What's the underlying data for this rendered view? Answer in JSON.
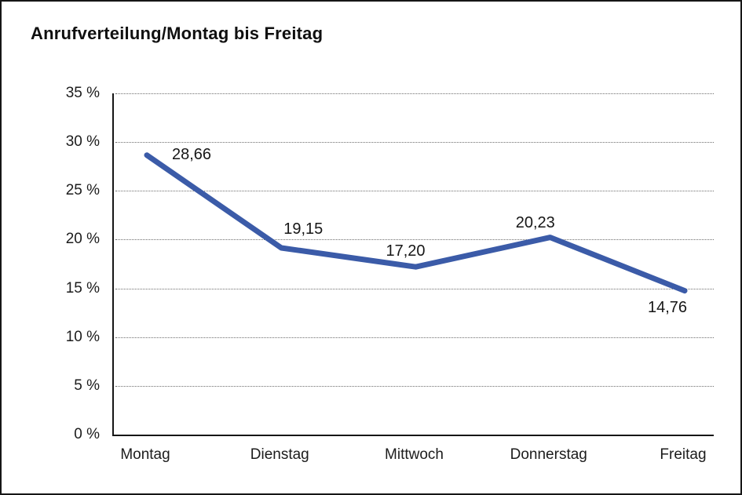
{
  "chart": {
    "title": "Anrufverteilung/Montag bis Freitag"
  },
  "chart_data": {
    "type": "line",
    "title": "Anrufverteilung/Montag bis Freitag",
    "categories": [
      "Montag",
      "Dienstag",
      "Mittwoch",
      "Donnerstag",
      "Freitag"
    ],
    "values": [
      28.66,
      19.15,
      17.2,
      20.23,
      14.76
    ],
    "data_labels": [
      "28,66",
      "19,15",
      "17,20",
      "20,23",
      "14,76"
    ],
    "xlabel": "",
    "ylabel": "",
    "ylim": [
      0,
      35
    ],
    "y_tick_step": 5,
    "y_tick_labels": [
      "35 %",
      "30 %",
      "25 %",
      "20 %",
      "15 %",
      "10 %",
      "5 %",
      "0 %"
    ],
    "grid": "horizontal-dotted",
    "legend": "none",
    "line_color": "#3B5BA8",
    "axis_color": "#161616",
    "gridline_color": "#6e6e6e"
  }
}
